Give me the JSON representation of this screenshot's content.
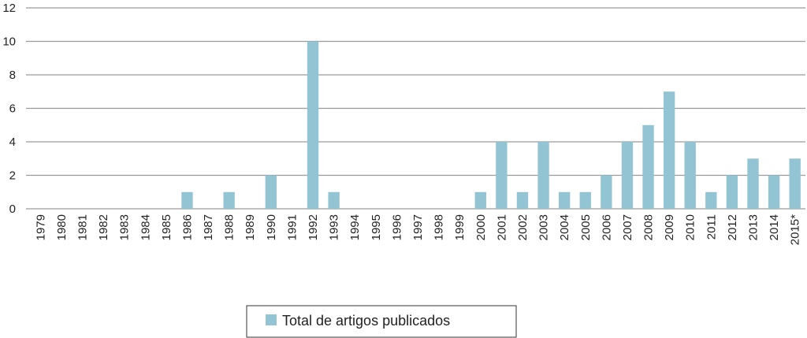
{
  "chart_data": {
    "type": "bar",
    "categories": [
      "1979",
      "1980",
      "1981",
      "1982",
      "1983",
      "1984",
      "1985",
      "1986",
      "1987",
      "1988",
      "1989",
      "1990",
      "1991",
      "1992",
      "1993",
      "1994",
      "1995",
      "1996",
      "1997",
      "1998",
      "1999",
      "2000",
      "2001",
      "2002",
      "2003",
      "2004",
      "2005",
      "2006",
      "2007",
      "2008",
      "2009",
      "2010",
      "2011",
      "2012",
      "2013",
      "2014",
      "2015*"
    ],
    "series": [
      {
        "name": "Total de artigos publicados",
        "color": "#93c4d3",
        "values": [
          0,
          0,
          0,
          0,
          0,
          0,
          0,
          1,
          0,
          1,
          0,
          2,
          0,
          10,
          1,
          0,
          0,
          0,
          0,
          0,
          0,
          1,
          4,
          1,
          4,
          1,
          1,
          2,
          4,
          5,
          7,
          4,
          1,
          2,
          3,
          2,
          3
        ]
      }
    ],
    "ylim": [
      0,
      12
    ],
    "yticks": [
      0,
      2,
      4,
      6,
      8,
      10,
      12
    ],
    "grid": true,
    "legend": "bottom"
  }
}
